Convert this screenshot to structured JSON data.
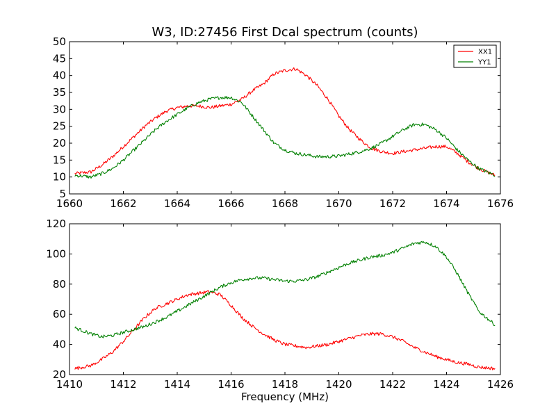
{
  "chart_data": [
    {
      "type": "line",
      "title": "W3, ID:27456 First Dcal spectrum (counts)",
      "xlabel": "",
      "ylabel": "",
      "xlim": [
        1660,
        1676
      ],
      "ylim": [
        5,
        50
      ],
      "xticks": [
        1660,
        1662,
        1664,
        1666,
        1668,
        1670,
        1672,
        1674,
        1676
      ],
      "yticks": [
        5,
        10,
        15,
        20,
        25,
        30,
        35,
        40,
        45,
        50
      ],
      "legend": "top-right",
      "grid": false,
      "series": [
        {
          "name": "XX1",
          "color": "#ff0000",
          "x": [
            1660.2,
            1660.8,
            1661.2,
            1661.6,
            1662.0,
            1662.4,
            1662.8,
            1663.2,
            1663.6,
            1664.0,
            1664.4,
            1664.8,
            1665.2,
            1665.6,
            1666.0,
            1666.4,
            1666.8,
            1667.2,
            1667.6,
            1668.0,
            1668.4,
            1668.8,
            1669.2,
            1669.6,
            1670.0,
            1670.4,
            1670.8,
            1671.2,
            1671.6,
            1672.0,
            1672.4,
            1672.8,
            1673.2,
            1673.6,
            1674.0,
            1674.4,
            1674.8,
            1675.2,
            1675.8
          ],
          "y": [
            11,
            11.5,
            13.5,
            16,
            19,
            22,
            25,
            27.5,
            29.5,
            30.5,
            31,
            31,
            30.5,
            31,
            31.5,
            33,
            35.5,
            37.5,
            40.5,
            41.5,
            42,
            40,
            37,
            33,
            28,
            24,
            21,
            18.5,
            17.5,
            17,
            17.5,
            18,
            18.5,
            19,
            19,
            17,
            14.5,
            12.5,
            10.5
          ]
        },
        {
          "name": "YY1",
          "color": "#008000",
          "x": [
            1660.2,
            1660.8,
            1661.2,
            1661.6,
            1662.0,
            1662.4,
            1662.8,
            1663.2,
            1663.6,
            1664.0,
            1664.4,
            1664.8,
            1665.2,
            1665.6,
            1666.0,
            1666.4,
            1666.8,
            1667.2,
            1667.6,
            1668.0,
            1668.4,
            1668.8,
            1669.2,
            1669.6,
            1670.0,
            1670.4,
            1670.8,
            1671.2,
            1671.6,
            1672.0,
            1672.4,
            1672.8,
            1673.2,
            1673.6,
            1674.0,
            1674.4,
            1674.8,
            1675.2,
            1675.8
          ],
          "y": [
            10.5,
            10,
            11,
            12.5,
            15,
            18,
            21,
            24,
            26.5,
            28.5,
            30.5,
            32,
            33,
            33.5,
            33.5,
            32,
            28,
            24,
            20,
            18,
            17,
            16.5,
            16,
            16,
            16.2,
            16.8,
            17.5,
            18.5,
            20,
            22,
            24,
            25.5,
            25.5,
            24,
            21.5,
            18,
            15,
            12.5,
            10.5
          ]
        }
      ]
    },
    {
      "type": "line",
      "title": "",
      "xlabel": "Frequency (MHz)",
      "ylabel": "",
      "xlim": [
        1410,
        1426
      ],
      "ylim": [
        20,
        120
      ],
      "xticks": [
        1410,
        1412,
        1414,
        1416,
        1418,
        1420,
        1422,
        1424,
        1426
      ],
      "yticks": [
        20,
        40,
        60,
        80,
        100,
        120
      ],
      "grid": false,
      "series": [
        {
          "name": "XX1",
          "color": "#ff0000",
          "x": [
            1410.2,
            1410.8,
            1411.2,
            1411.6,
            1412.0,
            1412.4,
            1412.8,
            1413.2,
            1413.6,
            1414.0,
            1414.4,
            1414.8,
            1415.2,
            1415.6,
            1416.0,
            1416.4,
            1416.8,
            1417.2,
            1417.6,
            1418.0,
            1418.4,
            1418.8,
            1419.2,
            1419.6,
            1420.0,
            1420.4,
            1420.8,
            1421.2,
            1421.6,
            1422.0,
            1422.4,
            1422.8,
            1423.2,
            1423.6,
            1424.0,
            1424.4,
            1424.8,
            1425.2,
            1425.8
          ],
          "y": [
            24,
            26,
            30,
            35,
            42,
            50,
            58,
            64,
            67,
            70,
            73,
            74,
            75,
            73,
            66,
            58,
            52,
            47,
            43,
            40,
            39,
            38,
            39,
            40,
            42,
            44,
            46,
            47,
            47,
            45,
            42,
            38,
            35,
            32,
            30,
            28,
            27,
            25,
            24
          ]
        },
        {
          "name": "YY1",
          "color": "#008000",
          "x": [
            1410.2,
            1410.8,
            1411.2,
            1411.6,
            1412.0,
            1412.4,
            1412.8,
            1413.2,
            1413.6,
            1414.0,
            1414.4,
            1414.8,
            1415.2,
            1415.6,
            1416.0,
            1416.4,
            1416.8,
            1417.2,
            1417.6,
            1418.0,
            1418.4,
            1418.8,
            1419.2,
            1419.6,
            1420.0,
            1420.4,
            1420.8,
            1421.2,
            1421.6,
            1422.0,
            1422.4,
            1422.8,
            1423.2,
            1423.6,
            1424.0,
            1424.4,
            1424.8,
            1425.2,
            1425.8
          ],
          "y": [
            51,
            47,
            45,
            46,
            48,
            50,
            52,
            55,
            58,
            62,
            66,
            70,
            74,
            78,
            81,
            83,
            84,
            84,
            83,
            82,
            82,
            83,
            85,
            88,
            91,
            94,
            96,
            98,
            99,
            101,
            104,
            107,
            108,
            105,
            98,
            87,
            74,
            62,
            53
          ]
        }
      ]
    }
  ]
}
